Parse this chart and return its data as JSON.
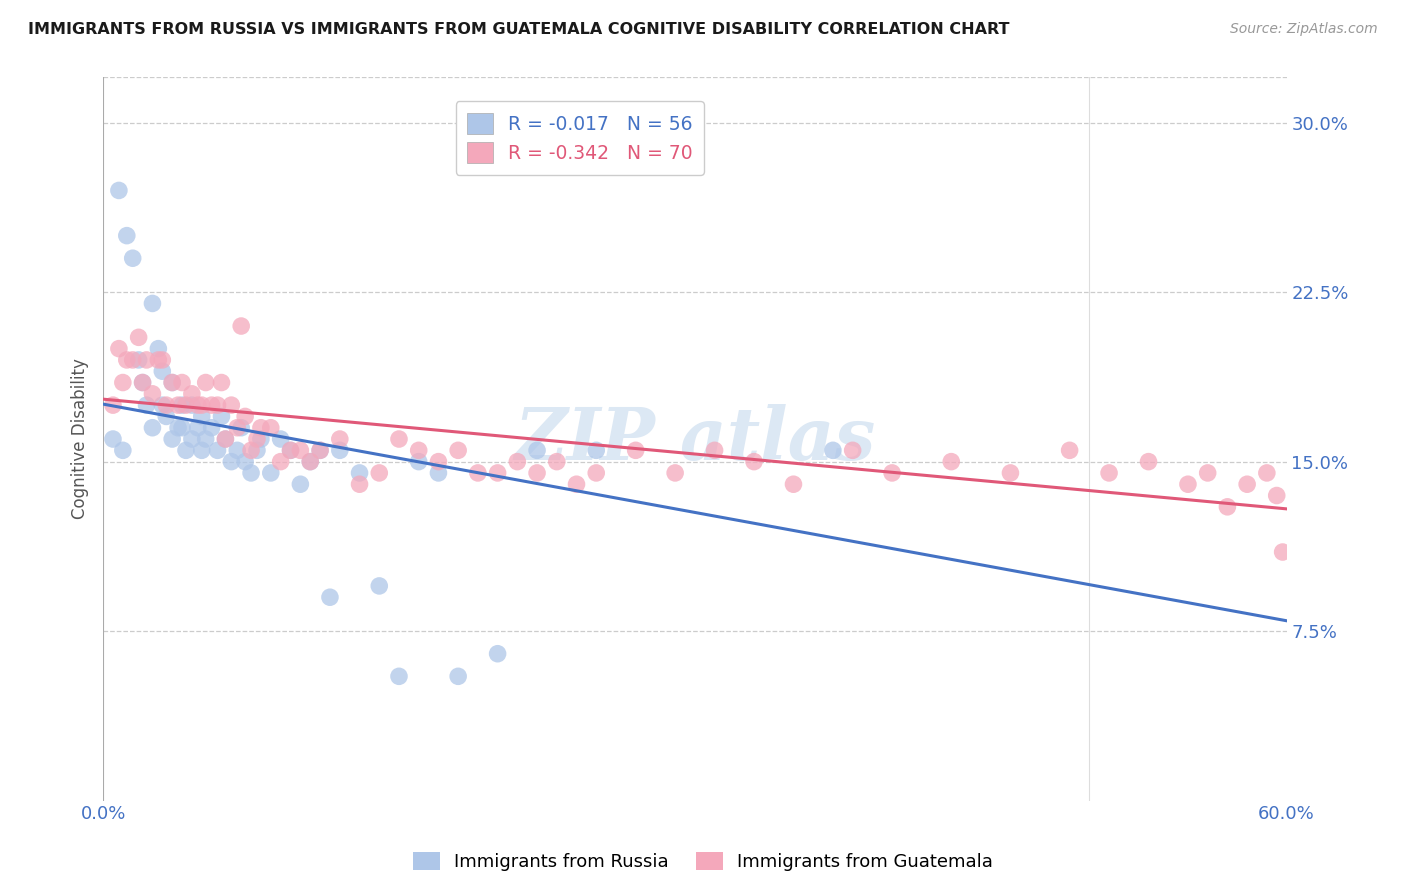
{
  "title": "IMMIGRANTS FROM RUSSIA VS IMMIGRANTS FROM GUATEMALA COGNITIVE DISABILITY CORRELATION CHART",
  "source": "Source: ZipAtlas.com",
  "ylabel": "Cognitive Disability",
  "ytick_labels": [
    "30.0%",
    "22.5%",
    "15.0%",
    "7.5%"
  ],
  "ytick_values": [
    0.3,
    0.225,
    0.15,
    0.075
  ],
  "xmin": 0.0,
  "xmax": 0.6,
  "ymin": 0.0,
  "ymax": 0.32,
  "R_russia": -0.017,
  "N_russia": 56,
  "R_guatemala": -0.342,
  "N_guatemala": 70,
  "color_russia": "#aec6e8",
  "color_guatemala": "#f4a8bb",
  "line_color_russia": "#4472c4",
  "line_color_guatemala": "#e05878",
  "background_color": "#ffffff",
  "grid_color": "#cccccc",
  "title_color": "#1a1a1a",
  "axis_label_color": "#4472c4",
  "watermark_color": "#dce8f4",
  "russia_x": [
    0.005,
    0.008,
    0.01,
    0.012,
    0.015,
    0.018,
    0.02,
    0.022,
    0.025,
    0.025,
    0.028,
    0.03,
    0.03,
    0.032,
    0.035,
    0.035,
    0.038,
    0.04,
    0.04,
    0.042,
    0.045,
    0.045,
    0.048,
    0.05,
    0.05,
    0.052,
    0.055,
    0.058,
    0.06,
    0.062,
    0.065,
    0.068,
    0.07,
    0.072,
    0.075,
    0.078,
    0.08,
    0.085,
    0.09,
    0.095,
    0.1,
    0.105,
    0.11,
    0.115,
    0.12,
    0.13,
    0.14,
    0.15,
    0.16,
    0.17,
    0.18,
    0.2,
    0.22,
    0.25,
    0.3,
    0.37
  ],
  "russia_y": [
    0.16,
    0.27,
    0.155,
    0.25,
    0.24,
    0.195,
    0.185,
    0.175,
    0.22,
    0.165,
    0.2,
    0.19,
    0.175,
    0.17,
    0.185,
    0.16,
    0.165,
    0.175,
    0.165,
    0.155,
    0.175,
    0.16,
    0.165,
    0.17,
    0.155,
    0.16,
    0.165,
    0.155,
    0.17,
    0.16,
    0.15,
    0.155,
    0.165,
    0.15,
    0.145,
    0.155,
    0.16,
    0.145,
    0.16,
    0.155,
    0.14,
    0.15,
    0.155,
    0.09,
    0.155,
    0.145,
    0.095,
    0.055,
    0.15,
    0.145,
    0.055,
    0.065,
    0.155,
    0.155,
    0.29,
    0.155
  ],
  "guatemala_x": [
    0.005,
    0.008,
    0.01,
    0.012,
    0.015,
    0.018,
    0.02,
    0.022,
    0.025,
    0.028,
    0.03,
    0.032,
    0.035,
    0.038,
    0.04,
    0.042,
    0.045,
    0.048,
    0.05,
    0.052,
    0.055,
    0.058,
    0.06,
    0.062,
    0.065,
    0.068,
    0.07,
    0.072,
    0.075,
    0.078,
    0.08,
    0.085,
    0.09,
    0.095,
    0.1,
    0.105,
    0.11,
    0.12,
    0.13,
    0.14,
    0.15,
    0.16,
    0.17,
    0.18,
    0.19,
    0.2,
    0.21,
    0.22,
    0.23,
    0.24,
    0.25,
    0.27,
    0.29,
    0.31,
    0.33,
    0.35,
    0.38,
    0.4,
    0.43,
    0.46,
    0.49,
    0.51,
    0.53,
    0.55,
    0.56,
    0.57,
    0.58,
    0.59,
    0.595,
    0.598
  ],
  "guatemala_y": [
    0.175,
    0.2,
    0.185,
    0.195,
    0.195,
    0.205,
    0.185,
    0.195,
    0.18,
    0.195,
    0.195,
    0.175,
    0.185,
    0.175,
    0.185,
    0.175,
    0.18,
    0.175,
    0.175,
    0.185,
    0.175,
    0.175,
    0.185,
    0.16,
    0.175,
    0.165,
    0.21,
    0.17,
    0.155,
    0.16,
    0.165,
    0.165,
    0.15,
    0.155,
    0.155,
    0.15,
    0.155,
    0.16,
    0.14,
    0.145,
    0.16,
    0.155,
    0.15,
    0.155,
    0.145,
    0.145,
    0.15,
    0.145,
    0.15,
    0.14,
    0.145,
    0.155,
    0.145,
    0.155,
    0.15,
    0.14,
    0.155,
    0.145,
    0.15,
    0.145,
    0.155,
    0.145,
    0.15,
    0.14,
    0.145,
    0.13,
    0.14,
    0.145,
    0.135,
    0.11
  ]
}
